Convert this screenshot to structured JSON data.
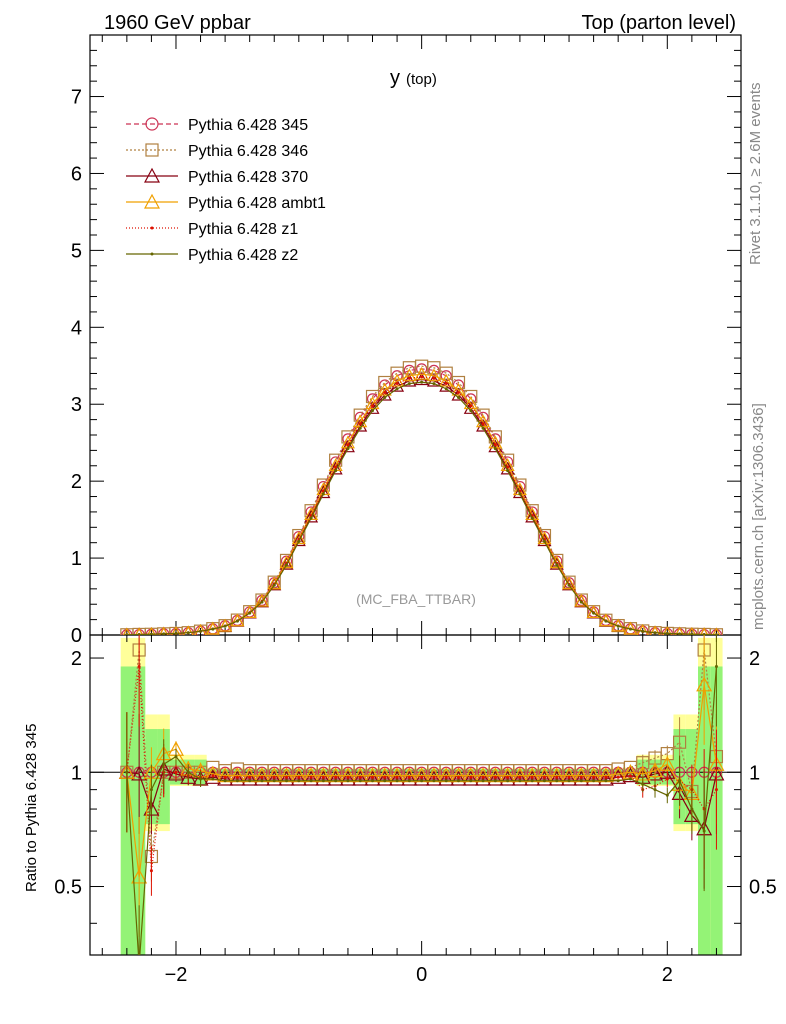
{
  "header": {
    "left": "1960 GeV ppbar",
    "right": "Top (parton level)"
  },
  "side": {
    "rivet": "Rivet 3.1.10, ≥ 2.6M events",
    "mcplots": "mcplots.cern.ch [arXiv:1306.3436]"
  },
  "chart_data": {
    "type": "line",
    "title": "y",
    "title_sub": "(top)",
    "analysis": "(MC_FBA_TTBAR)",
    "xlim": [
      -2.7,
      2.6
    ],
    "ylim": [
      0,
      7.8
    ],
    "ratio_ylim": [
      0.33,
      2.3
    ],
    "ratio_ylabel": "Ratio to Pythia 6.428 345",
    "legend_position": "top-left",
    "x_ticks": [
      "−2",
      "0",
      "2"
    ],
    "y_ticks": [
      "0",
      "1",
      "2",
      "3",
      "4",
      "5",
      "6",
      "7"
    ],
    "ratio_ticks": [
      "0.5",
      "1",
      "2"
    ],
    "x": [
      -2.4,
      -2.3,
      -2.2,
      -2.1,
      -2.0,
      -1.9,
      -1.8,
      -1.7,
      -1.6,
      -1.5,
      -1.4,
      -1.3,
      -1.2,
      -1.1,
      -1.0,
      -0.9,
      -0.8,
      -0.7,
      -0.6,
      -0.5,
      -0.4,
      -0.3,
      -0.2,
      -0.1,
      0.0,
      0.1,
      0.2,
      0.3,
      0.4,
      0.5,
      0.6,
      0.7,
      0.8,
      0.9,
      1.0,
      1.1,
      1.2,
      1.3,
      1.4,
      1.5,
      1.6,
      1.7,
      1.8,
      1.9,
      2.0,
      2.1,
      2.2,
      2.3,
      2.4
    ],
    "reference_values": [
      0.003,
      0.006,
      0.01,
      0.015,
      0.02,
      0.03,
      0.05,
      0.08,
      0.12,
      0.19,
      0.3,
      0.45,
      0.68,
      0.96,
      1.28,
      1.6,
      1.93,
      2.25,
      2.55,
      2.83,
      3.07,
      3.25,
      3.37,
      3.44,
      3.46,
      3.44,
      3.37,
      3.25,
      3.07,
      2.83,
      2.55,
      2.25,
      1.93,
      1.6,
      1.28,
      0.96,
      0.68,
      0.45,
      0.3,
      0.19,
      0.12,
      0.08,
      0.05,
      0.03,
      0.02,
      0.015,
      0.01,
      0.006,
      0.003
    ],
    "series": [
      {
        "name": "Pythia 6.428 345",
        "color": "#cc3355",
        "dash": "5,3",
        "marker": "circle",
        "ratio": [
          1.0,
          1.0,
          1.0,
          1.0,
          1.0,
          1.0,
          1.0,
          1.0,
          1.0,
          1.0,
          1.0,
          1.0,
          1.0,
          1.0,
          1.0,
          1.0,
          1.0,
          1.0,
          1.0,
          1.0,
          1.0,
          1.0,
          1.0,
          1.0,
          1.0,
          1.0,
          1.0,
          1.0,
          1.0,
          1.0,
          1.0,
          1.0,
          1.0,
          1.0,
          1.0,
          1.0,
          1.0,
          1.0,
          1.0,
          1.0,
          1.0,
          1.0,
          1.0,
          1.0,
          1.0,
          1.0,
          1.0,
          1.0,
          1.0
        ]
      },
      {
        "name": "Pythia 6.428 346",
        "color": "#b08040",
        "dash": "2,2",
        "marker": "square",
        "ratio": [
          1.0,
          2.1,
          0.6,
          1.0,
          1.0,
          1.0,
          1.0,
          1.03,
          1.01,
          1.02,
          1.01,
          1.01,
          1.01,
          1.01,
          1.01,
          1.01,
          1.01,
          1.01,
          1.01,
          1.01,
          1.01,
          1.01,
          1.01,
          1.01,
          1.01,
          1.01,
          1.01,
          1.01,
          1.01,
          1.01,
          1.01,
          1.01,
          1.01,
          1.01,
          1.01,
          1.01,
          1.01,
          1.01,
          1.01,
          1.01,
          1.02,
          1.03,
          1.06,
          1.09,
          1.12,
          1.2,
          0.89,
          2.1,
          1.1
        ]
      },
      {
        "name": "Pythia 6.428 370",
        "color": "#880011",
        "dash": "",
        "marker": "triangle",
        "ratio": [
          1.0,
          0.99,
          0.8,
          1.02,
          0.99,
          0.97,
          0.96,
          0.97,
          0.96,
          0.96,
          0.96,
          0.96,
          0.96,
          0.96,
          0.96,
          0.96,
          0.96,
          0.96,
          0.96,
          0.96,
          0.96,
          0.96,
          0.96,
          0.96,
          0.96,
          0.96,
          0.96,
          0.96,
          0.96,
          0.96,
          0.96,
          0.96,
          0.96,
          0.96,
          0.96,
          0.96,
          0.96,
          0.96,
          0.96,
          0.96,
          0.97,
          0.98,
          0.97,
          0.99,
          1.0,
          0.88,
          0.77,
          0.71,
          0.99
        ]
      },
      {
        "name": "Pythia 6.428 ambt1",
        "color": "#f0a000",
        "dash": "",
        "marker": "triangle",
        "ratio": [
          1.0,
          0.53,
          1.0,
          1.12,
          1.15,
          1.02,
          1.01,
          0.99,
          0.98,
          0.98,
          0.98,
          0.98,
          0.98,
          0.98,
          0.98,
          0.98,
          0.98,
          0.98,
          0.98,
          0.98,
          0.98,
          0.98,
          0.98,
          0.98,
          0.98,
          0.98,
          0.98,
          0.98,
          0.98,
          0.98,
          0.98,
          0.98,
          0.98,
          0.98,
          0.98,
          0.98,
          0.98,
          0.98,
          0.98,
          0.98,
          0.99,
          1.0,
          0.99,
          1.01,
          1.05,
          0.93,
          0.88,
          1.7,
          1.05
        ]
      },
      {
        "name": "Pythia 6.428 z1",
        "color": "#dd1100",
        "dash": "1,2",
        "marker": "dot",
        "ratio": [
          1.0,
          1.9,
          0.55,
          1.0,
          1.0,
          0.98,
          0.97,
          0.98,
          0.97,
          0.97,
          0.97,
          0.97,
          0.97,
          0.97,
          0.97,
          0.97,
          0.97,
          0.97,
          0.97,
          0.97,
          0.97,
          0.97,
          0.97,
          0.97,
          0.97,
          0.97,
          0.97,
          0.97,
          0.97,
          0.97,
          0.97,
          0.97,
          0.97,
          0.97,
          0.97,
          0.97,
          0.97,
          0.97,
          0.97,
          0.97,
          0.97,
          0.98,
          0.9,
          0.92,
          0.96,
          0.95,
          0.9,
          0.8,
          0.9
        ]
      },
      {
        "name": "Pythia 6.428 z2",
        "color": "#666600",
        "dash": "",
        "marker": "dot",
        "ratio": [
          1.0,
          0.3,
          0.9,
          1.05,
          1.1,
          1.0,
          0.96,
          0.96,
          0.95,
          0.95,
          0.95,
          0.95,
          0.95,
          0.95,
          0.95,
          0.95,
          0.95,
          0.95,
          0.95,
          0.95,
          0.95,
          0.95,
          0.95,
          0.95,
          0.95,
          0.95,
          0.95,
          0.95,
          0.95,
          0.95,
          0.95,
          0.95,
          0.95,
          0.95,
          0.95,
          0.95,
          0.95,
          0.95,
          0.95,
          0.95,
          0.95,
          0.96,
          0.93,
          0.9,
          0.87,
          0.95,
          0.8,
          0.7,
          1.9
        ]
      }
    ]
  }
}
